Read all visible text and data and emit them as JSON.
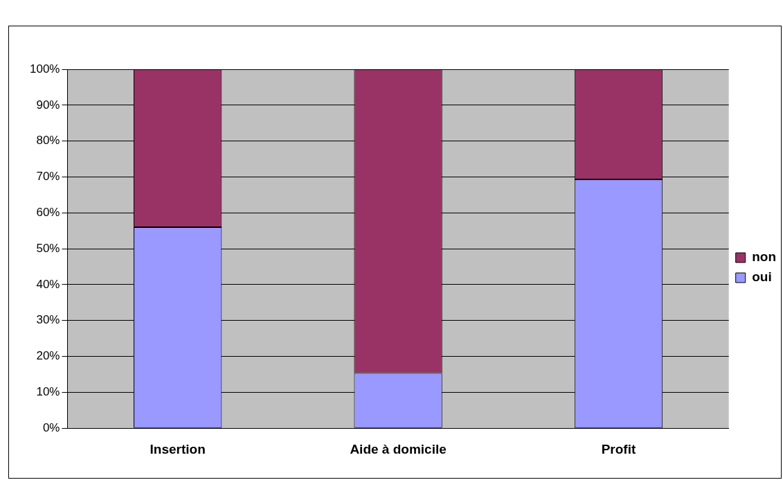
{
  "chart_data": {
    "type": "bar",
    "stacked": true,
    "categories": [
      "Insertion",
      "Aide à domicile",
      "Profit"
    ],
    "series": [
      {
        "name": "oui",
        "color": "#9999ff",
        "values": [
          56,
          15.4,
          69.3
        ]
      },
      {
        "name": "non",
        "color": "#993366",
        "values": [
          44,
          84.6,
          30.7
        ]
      }
    ],
    "ylim": [
      0,
      100
    ],
    "yticks": [
      {
        "value": 0,
        "label": "0%"
      },
      {
        "value": 10,
        "label": "10%"
      },
      {
        "value": 20,
        "label": "20%"
      },
      {
        "value": 30,
        "label": "30%"
      },
      {
        "value": 40,
        "label": "40%"
      },
      {
        "value": 50,
        "label": "50%"
      },
      {
        "value": 60,
        "label": "60%"
      },
      {
        "value": 70,
        "label": "70%"
      },
      {
        "value": 80,
        "label": "80%"
      },
      {
        "value": 90,
        "label": "90%"
      },
      {
        "value": 100,
        "label": "100%"
      }
    ],
    "grid": "y",
    "legend": "right"
  }
}
